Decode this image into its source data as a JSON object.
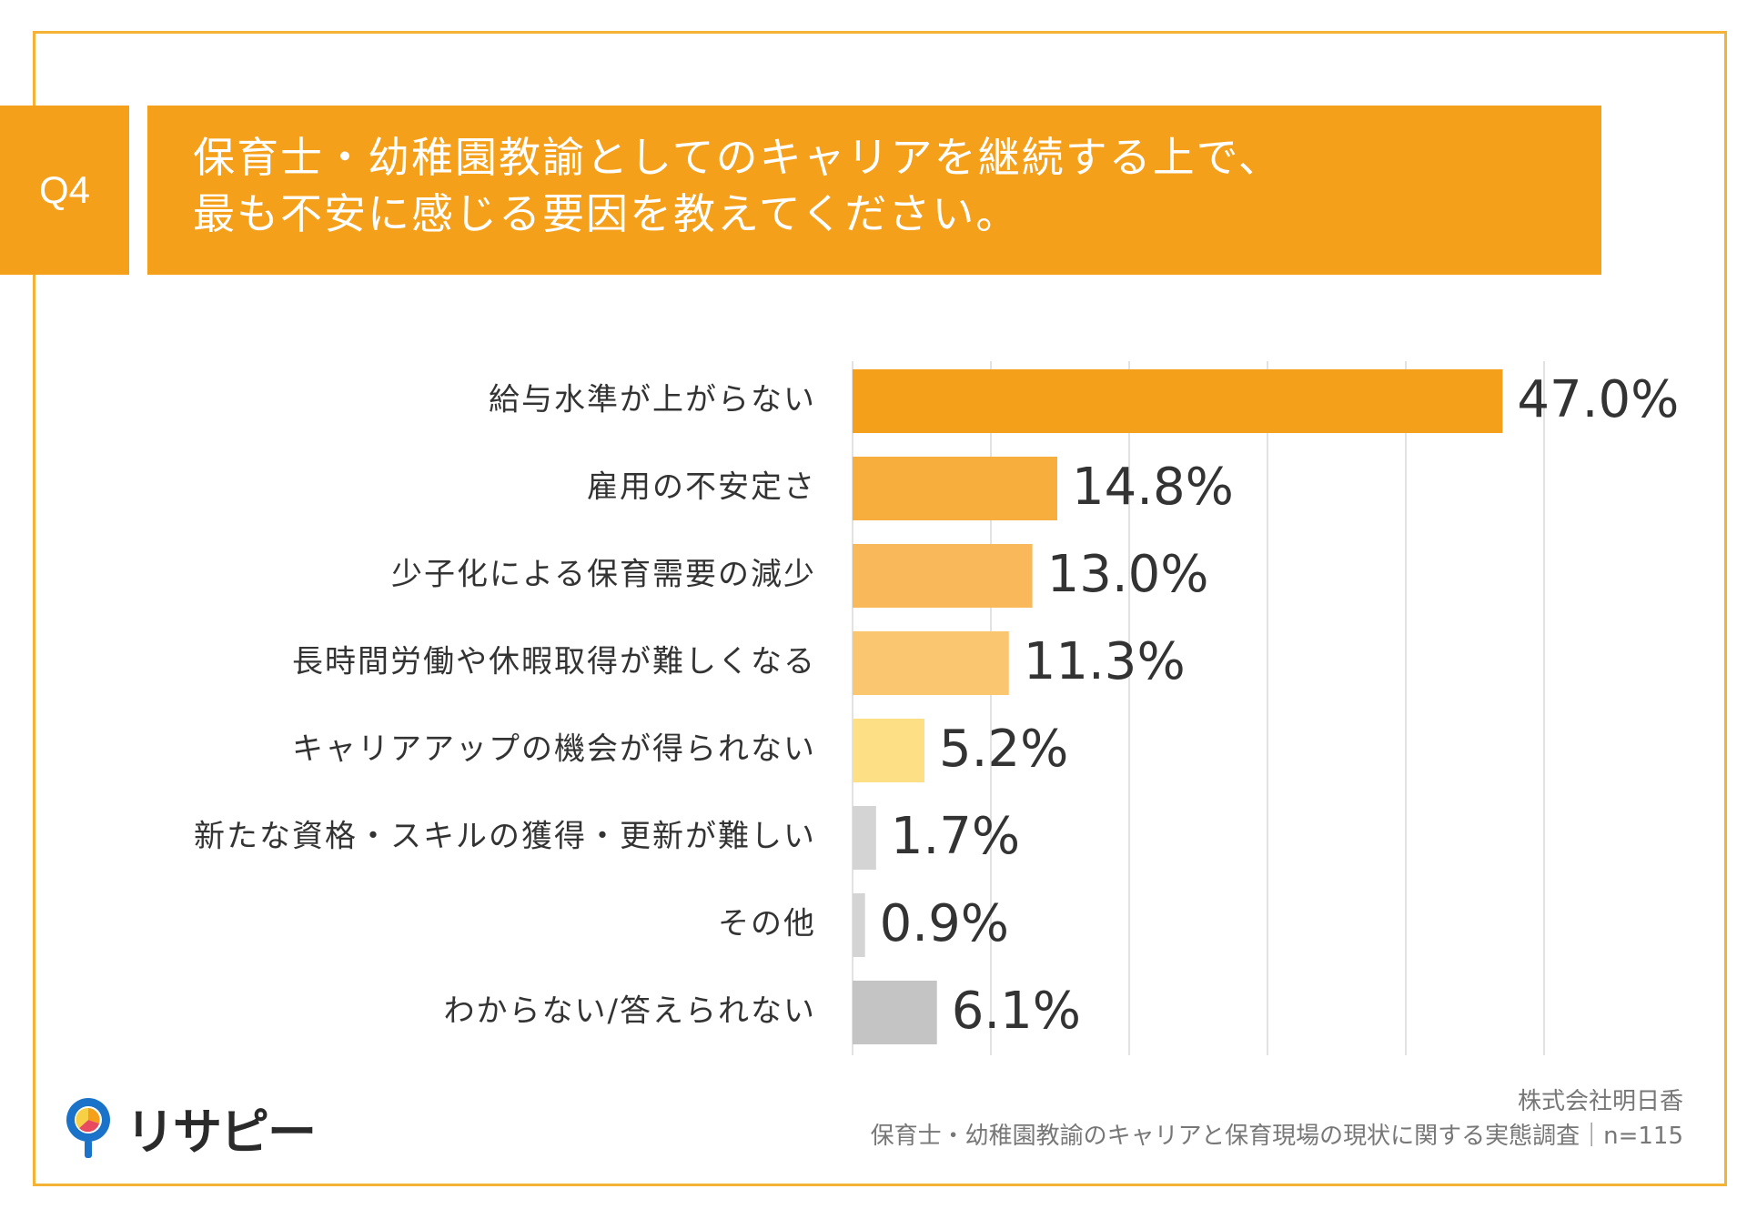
{
  "question": {
    "number": "Q4",
    "line1": "保育士・幼稚園教諭としてのキャリアを継続する上で、",
    "line2": "最も不安に感じる要因を教えてください。"
  },
  "colors": {
    "frame": "#f5b335",
    "header": "#f5a01a"
  },
  "chart_data": {
    "type": "bar",
    "orientation": "horizontal",
    "title": "保育士・幼稚園教諭としてのキャリアを継続する上で、最も不安に感じる要因を教えてください。",
    "categories": [
      "給与水準が上がらない",
      "雇用の不安定さ",
      "少子化による保育需要の減少",
      "長時間労働や休暇取得が難しくなる",
      "キャリアアップの機会が得られない",
      "新たな資格・スキルの獲得・更新が難しい",
      "その他",
      "わからない/答えられない"
    ],
    "values": [
      47.0,
      14.8,
      13.0,
      11.3,
      5.2,
      1.7,
      0.9,
      6.1
    ],
    "value_labels": [
      "47.0%",
      "14.8%",
      "13.0%",
      "11.3%",
      "5.2%",
      "1.7%",
      "0.9%",
      "6.1%"
    ],
    "bar_colors": [
      "#f5a01a",
      "#f7ae3c",
      "#f9b95a",
      "#fbc670",
      "#fde085",
      "#d4d4d4",
      "#d4d4d4",
      "#c4c4c4"
    ],
    "xlim": [
      0,
      50
    ],
    "grid": true
  },
  "logo": {
    "text": "リサピー"
  },
  "source": {
    "company": "株式会社明日香",
    "survey": "保育士・幼稚園教諭のキャリアと保育現場の現状に関する実態調査｜n=115"
  }
}
